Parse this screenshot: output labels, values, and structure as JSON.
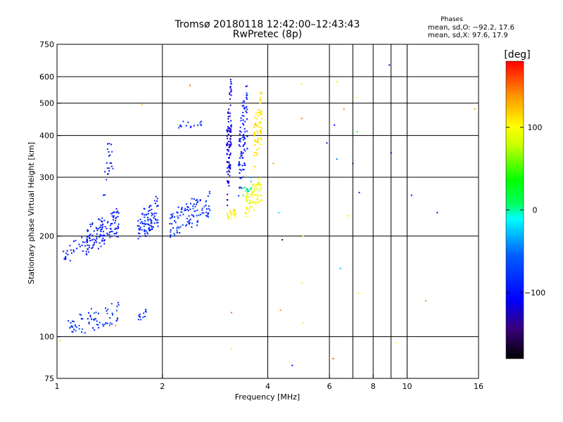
{
  "chart_data": {
    "type": "scatter",
    "title": "Tromsø 20180118 12:42:00–12:43:43",
    "subtitle": "RwPretec (8p)",
    "xlabel": "Frequency [MHz]",
    "ylabel": "Stationary phase Virtual Height [km]",
    "x_scale": "log",
    "y_scale": "log",
    "xlim": [
      1,
      16
    ],
    "ylim": [
      75,
      750
    ],
    "x_ticks": [
      {
        "value": 1,
        "label": "1"
      },
      {
        "value": 2,
        "label": "2"
      },
      {
        "value": 4,
        "label": "4"
      },
      {
        "value": 6,
        "label": "6"
      },
      {
        "value": 8,
        "label": "8"
      },
      {
        "value": 10,
        "label": "10"
      },
      {
        "value": 16,
        "label": "16"
      }
    ],
    "x_grid": [
      2,
      4,
      6,
      8,
      10
    ],
    "x_minor_lines": [
      7,
      9
    ],
    "y_ticks": [
      {
        "value": 750,
        "label": "750"
      },
      {
        "value": 600,
        "label": "600"
      },
      {
        "value": 500,
        "label": "500"
      },
      {
        "value": 400,
        "label": "400"
      },
      {
        "value": 300,
        "label": "300"
      },
      {
        "value": 200,
        "label": "200"
      },
      {
        "value": 100,
        "label": "100"
      },
      {
        "value": 75,
        "label": "75"
      }
    ],
    "y_grid": [
      600,
      500,
      400,
      300,
      200,
      100
    ],
    "grid": true,
    "phases_box": {
      "heading": "Phases",
      "line1": "mean, sd,O: −92.2, 17.6",
      "line2": "mean, sd,X:  97.6, 17.9"
    },
    "colorbar": {
      "label": "[deg]",
      "range": [
        -180,
        180
      ],
      "ticks": [
        {
          "value": 100,
          "label": "100"
        },
        {
          "value": 0,
          "label": "0"
        },
        {
          "value": -100,
          "label": "−100"
        }
      ]
    },
    "clusters": [
      {
        "x": [
          1.03,
          1.25
        ],
        "y": [
          168,
          200
        ],
        "spread": 0.035,
        "n": 35,
        "phase": [
          -100,
          -85
        ]
      },
      {
        "x": [
          1.2,
          1.5
        ],
        "y": [
          175,
          240
        ],
        "spread": 0.06,
        "n": 120,
        "phase": [
          -110,
          -80
        ]
      },
      {
        "x": [
          1.7,
          1.95
        ],
        "y": [
          190,
          260
        ],
        "spread": 0.06,
        "n": 90,
        "phase": [
          -105,
          -75
        ]
      },
      {
        "x": [
          1.35,
          1.45
        ],
        "y": [
          260,
          420
        ],
        "spread": 0.09,
        "n": 22,
        "phase": [
          -100,
          -75
        ]
      },
      {
        "x": [
          1.05,
          1.5
        ],
        "y": [
          100,
          125
        ],
        "spread": 0.04,
        "n": 70,
        "phase": [
          -105,
          -60
        ]
      },
      {
        "x": [
          1.7,
          1.8
        ],
        "y": [
          108,
          122
        ],
        "spread": 0.03,
        "n": 12,
        "phase": [
          -95,
          -80
        ]
      },
      {
        "x": [
          2.1,
          2.75
        ],
        "y": [
          200,
          270
        ],
        "spread": 0.05,
        "n": 110,
        "phase": [
          -105,
          -60
        ]
      },
      {
        "x": [
          2.2,
          2.6
        ],
        "y": [
          420,
          445
        ],
        "spread": 0.02,
        "n": 15,
        "phase": [
          -105,
          -70
        ]
      },
      {
        "x": [
          3.05,
          3.15
        ],
        "y": [
          230,
          640
        ],
        "spread": 0.03,
        "n": 110,
        "phase": [
          -130,
          -100
        ]
      },
      {
        "x": [
          3.3,
          3.5
        ],
        "y": [
          250,
          600
        ],
        "spread": 0.04,
        "n": 90,
        "phase": [
          -115,
          -80
        ]
      },
      {
        "x": [
          3.05,
          3.25
        ],
        "y": [
          220,
          245
        ],
        "spread": 0.03,
        "n": 25,
        "phase": [
          100,
          115
        ]
      },
      {
        "x": [
          3.45,
          3.85
        ],
        "y": [
          230,
          300
        ],
        "spread": 0.04,
        "n": 80,
        "phase": [
          80,
          110
        ]
      },
      {
        "x": [
          3.65,
          3.85
        ],
        "y": [
          300,
          560
        ],
        "spread": 0.04,
        "n": 70,
        "phase": [
          105,
          120
        ]
      },
      {
        "x": [
          3.4,
          3.6
        ],
        "y": [
          260,
          300
        ],
        "spread": 0.03,
        "n": 15,
        "phase": [
          -40,
          20
        ]
      }
    ],
    "sparse_points": [
      {
        "x": 2.4,
        "y": 565,
        "phase": 150
      },
      {
        "x": 1.75,
        "y": 495,
        "phase": 120
      },
      {
        "x": 1.02,
        "y": 97,
        "phase": 110
      },
      {
        "x": 1.47,
        "y": 108,
        "phase": 140
      },
      {
        "x": 3.15,
        "y": 118,
        "phase": 150
      },
      {
        "x": 3.15,
        "y": 92,
        "phase": 90
      },
      {
        "x": 4.15,
        "y": 330,
        "phase": 140
      },
      {
        "x": 4.3,
        "y": 235,
        "phase": -20
      },
      {
        "x": 4.4,
        "y": 195,
        "phase": -160
      },
      {
        "x": 4.7,
        "y": 82,
        "phase": -110
      },
      {
        "x": 4.35,
        "y": 120,
        "phase": 140
      },
      {
        "x": 5.0,
        "y": 570,
        "phase": 80
      },
      {
        "x": 5.0,
        "y": 450,
        "phase": 150
      },
      {
        "x": 5.05,
        "y": 200,
        "phase": 90
      },
      {
        "x": 5.0,
        "y": 145,
        "phase": 95
      },
      {
        "x": 5.05,
        "y": 110,
        "phase": 100
      },
      {
        "x": 5.9,
        "y": 380,
        "phase": -100
      },
      {
        "x": 6.2,
        "y": 430,
        "phase": -110
      },
      {
        "x": 6.3,
        "y": 580,
        "phase": 110
      },
      {
        "x": 6.6,
        "y": 480,
        "phase": 140
      },
      {
        "x": 6.8,
        "y": 230,
        "phase": 110
      },
      {
        "x": 6.45,
        "y": 160,
        "phase": -30
      },
      {
        "x": 6.15,
        "y": 86,
        "phase": 160
      },
      {
        "x": 6.3,
        "y": 340,
        "phase": -50
      },
      {
        "x": 7.0,
        "y": 330,
        "phase": -150
      },
      {
        "x": 7.2,
        "y": 520,
        "phase": 100
      },
      {
        "x": 7.3,
        "y": 270,
        "phase": -100
      },
      {
        "x": 7.25,
        "y": 135,
        "phase": 105
      },
      {
        "x": 7.2,
        "y": 410,
        "phase": 40
      },
      {
        "x": 8.9,
        "y": 650,
        "phase": -110
      },
      {
        "x": 9.0,
        "y": 355,
        "phase": -120
      },
      {
        "x": 9.3,
        "y": 96,
        "phase": 100
      },
      {
        "x": 10.3,
        "y": 265,
        "phase": -110
      },
      {
        "x": 11.3,
        "y": 128,
        "phase": 140
      },
      {
        "x": 12.2,
        "y": 235,
        "phase": -115
      },
      {
        "x": 15.6,
        "y": 480,
        "phase": 130
      }
    ]
  }
}
